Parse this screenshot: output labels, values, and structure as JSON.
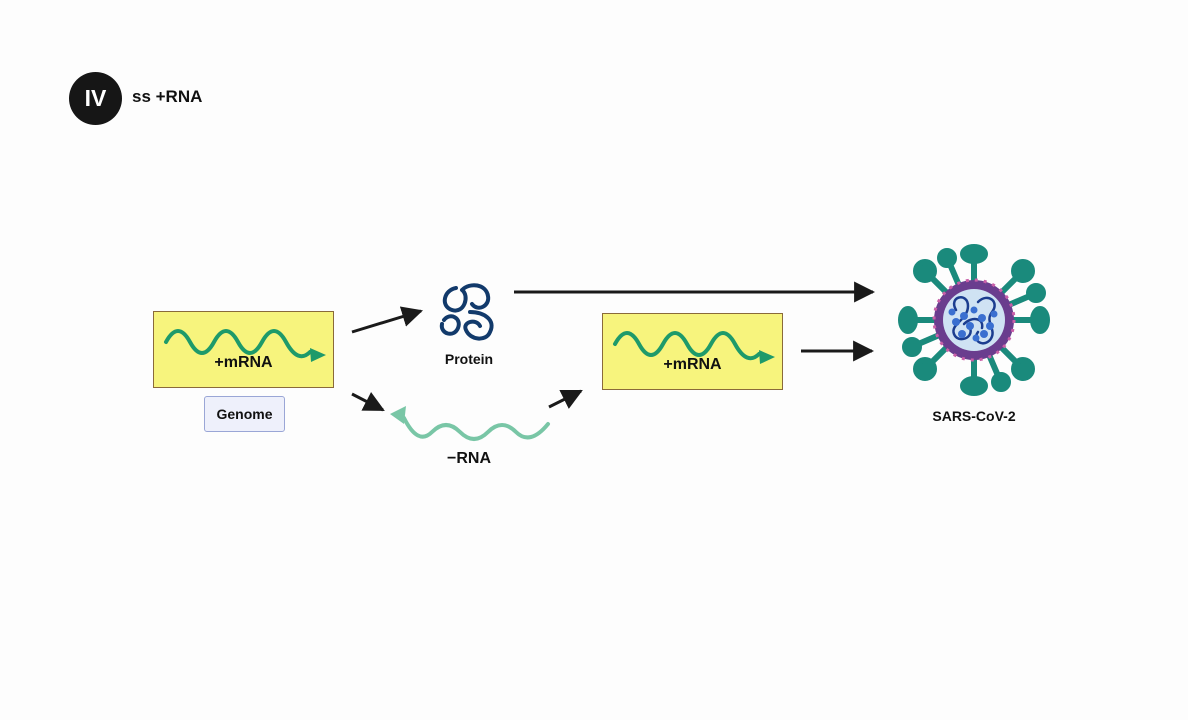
{
  "badge": {
    "text": "IV"
  },
  "heading": {
    "text": "ss +RNA"
  },
  "nodes": {
    "mrna_1": {
      "label": "+mRNA"
    },
    "genome": {
      "label": "Genome"
    },
    "protein": {
      "label": "Protein"
    },
    "neg_rna": {
      "label": "−RNA"
    },
    "mrna_2": {
      "label": "+mRNA"
    },
    "virus": {
      "label": "SARS-CoV-2"
    }
  },
  "colors": {
    "mrna_wave": "#1e9a6a",
    "neg_rna_wave": "#79c6a6",
    "box_fill": "#f7f47d",
    "box_border": "#8a6a3a",
    "arrow": "#1a1a1a",
    "protein": "#123a6b",
    "virus_spike": "#1a8a7c",
    "virus_envelope": "#6a3d8e",
    "virus_core": "#cfe2f3"
  },
  "icons": [
    "protein-icon",
    "virus-icon"
  ]
}
